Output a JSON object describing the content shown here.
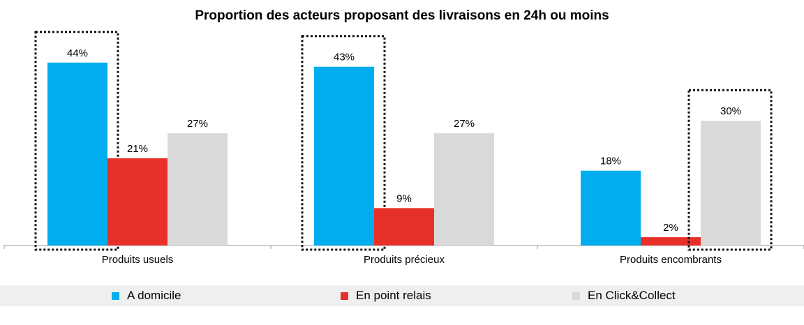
{
  "chart_data": {
    "type": "bar",
    "title": "Proportion des acteurs proposant des livraisons en 24h ou moins",
    "categories": [
      "Produits usuels",
      "Produits précieux",
      "Produits encombrants"
    ],
    "series": [
      {
        "name": "A domicile",
        "values": [
          44,
          43,
          18
        ],
        "color": "#00aeef"
      },
      {
        "name": "En point relais",
        "values": [
          21,
          9,
          2
        ],
        "color": "#e8302a"
      },
      {
        "name": "En Click&Collect",
        "values": [
          27,
          27,
          30
        ],
        "color": "#d9d9d9"
      }
    ],
    "value_suffix": "%",
    "ylim": [
      0,
      50
    ],
    "grid": false,
    "legend_position": "bottom",
    "highlighted": [
      {
        "category": "Produits usuels",
        "series": "A domicile"
      },
      {
        "category": "Produits précieux",
        "series": "A domicile"
      },
      {
        "category": "Produits encombrants",
        "series": "En Click&Collect"
      }
    ]
  }
}
